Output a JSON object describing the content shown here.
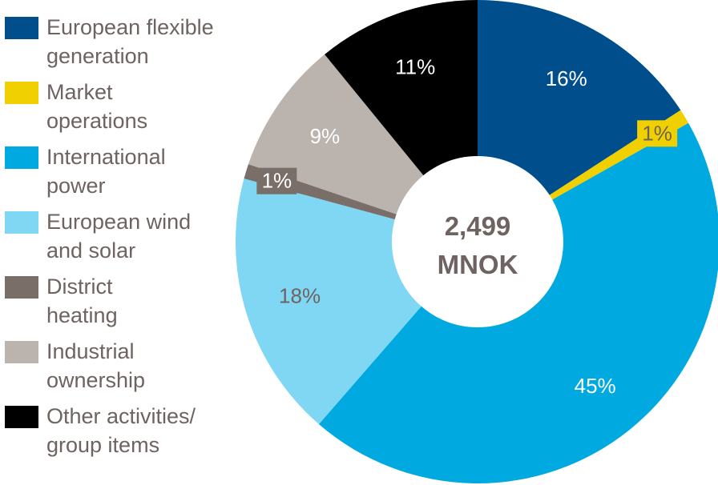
{
  "chart_data": {
    "type": "pie",
    "center_label": [
      "2,499",
      "MNOK"
    ],
    "slices": [
      {
        "name": "European flexible generation",
        "legend_label": "European flexible\ngeneration",
        "value": 16,
        "label": "16%",
        "color": "#004f8c",
        "label_color": "#ffffff"
      },
      {
        "name": "Market operations",
        "legend_label": "Market\noperations",
        "value": 1,
        "label": "1%",
        "color": "#f0d000",
        "label_color": "#6e6360"
      },
      {
        "name": "International power",
        "legend_label": "International\npower",
        "value": 45,
        "label": "45%",
        "color": "#00a9e0",
        "label_color": "#ffffff"
      },
      {
        "name": "European wind and solar",
        "legend_label": "European wind\nand solar",
        "value": 18,
        "label": "18%",
        "color": "#7fd7f3",
        "label_color": "#6e6360"
      },
      {
        "name": "District heating",
        "legend_label": "District\nheating",
        "value": 1,
        "label": "1%",
        "color": "#7a6e68",
        "label_color": "#ffffff"
      },
      {
        "name": "Industrial ownership",
        "legend_label": "Industrial\nownership",
        "value": 9,
        "label": "9%",
        "color": "#bab3ae",
        "label_color": "#ffffff"
      },
      {
        "name": "Other activities/ group items",
        "legend_label": "Other activities/\ngroup items",
        "value": 11,
        "label": "11%",
        "color": "#000000",
        "label_color": "#ffffff"
      }
    ],
    "legend_position": "left"
  }
}
